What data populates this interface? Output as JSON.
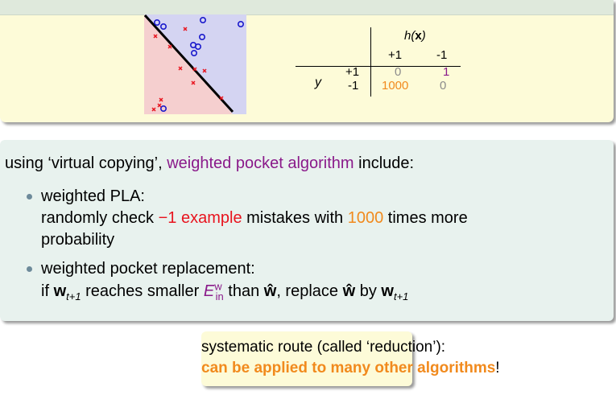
{
  "colors": {
    "purple": "#8a1a8a",
    "red": "#e8141e",
    "orange": "#f18a1d",
    "grey": "#8c8c8c",
    "positive_marker": "#1a1acc",
    "negative_marker": "#e8141e",
    "positive_region": "#d4d4f2",
    "negative_region": "#f5cfcf"
  },
  "plot": {
    "positive_marker": "circle",
    "negative_marker": "cross"
  },
  "cost_matrix": {
    "column_header": "h(x)",
    "columns": [
      "+1",
      "-1"
    ],
    "row_header": "y",
    "rows": [
      {
        "label": "+1",
        "values": [
          "0",
          "1"
        ]
      },
      {
        "label": "-1",
        "values": [
          "1000",
          "0"
        ]
      }
    ]
  },
  "content": {
    "intro": {
      "before": "using ‘virtual copying’, ",
      "highlight": "weighted pocket algorithm",
      "after": " include:"
    },
    "bullet1": {
      "title": "weighted PLA:",
      "line2_before": "randomly check ",
      "line2_red": "−1 example",
      "line2_middle": " mistakes with ",
      "line2_orange": "1000",
      "line2_after": " times more",
      "line3": "probability"
    },
    "bullet2": {
      "title": "weighted pocket replacement:",
      "if_word": "if ",
      "w": "w",
      "t1": "t+1",
      "reaches": " reaches smaller ",
      "E": "E",
      "E_sup": "w",
      "E_sub": "in",
      "than": " than ",
      "what": "ŵ",
      "replace": ", replace ",
      "what2": "ŵ",
      "by": " by ",
      "w2": "w",
      "t1b": "t+1"
    }
  },
  "summary": {
    "line1": "systematic route (called ‘reduction’):",
    "line2_bold": "can be applied to many other algorithms",
    "line2_end": "!"
  }
}
